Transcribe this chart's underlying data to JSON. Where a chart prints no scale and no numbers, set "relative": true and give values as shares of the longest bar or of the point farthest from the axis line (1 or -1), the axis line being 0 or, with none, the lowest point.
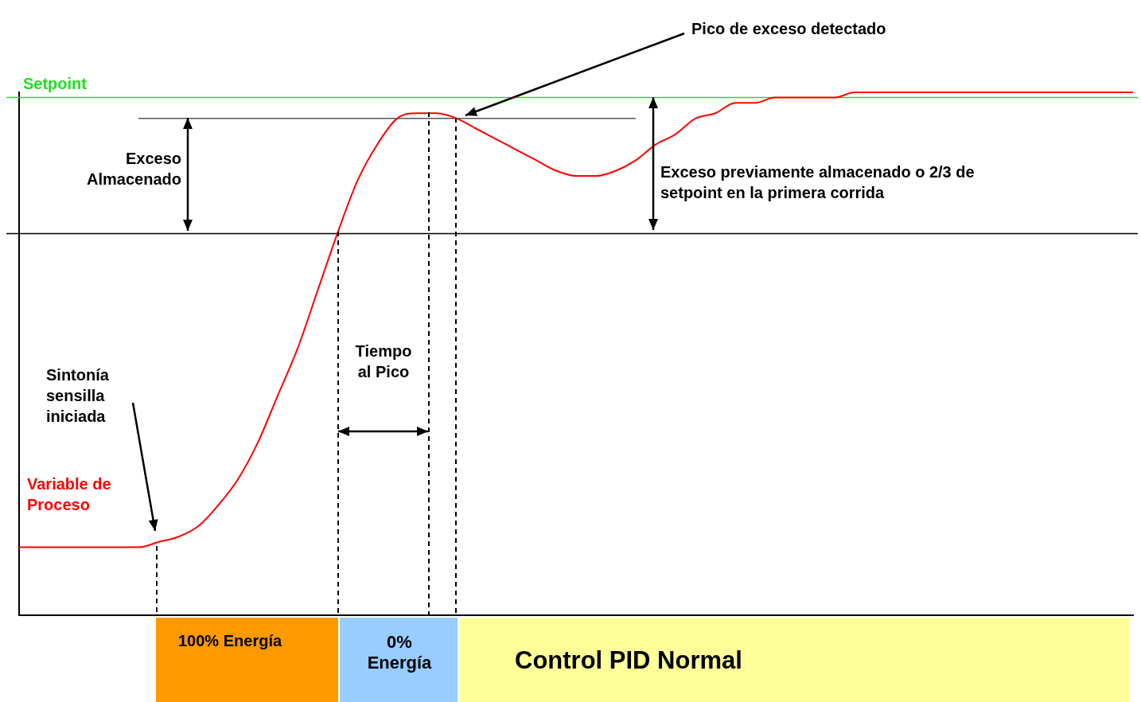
{
  "chart_data": {
    "type": "line",
    "relative": true,
    "categories": [
      null,
      null,
      null,
      null,
      null,
      null,
      null,
      null,
      null,
      null,
      null,
      null,
      null,
      null,
      null,
      null,
      null,
      null,
      null,
      null,
      null,
      null,
      null,
      null,
      null,
      null,
      null,
      null,
      null,
      null,
      null,
      null,
      null,
      null,
      null,
      null,
      null,
      null,
      null,
      null,
      null,
      null,
      null,
      null,
      null,
      null,
      null,
      null,
      null,
      null,
      null,
      null,
      null,
      null,
      null,
      null,
      null
    ],
    "series": [
      {
        "name": "Variable de Proceso",
        "color": "#ff0000",
        "values": [
          0.13,
          0.13,
          0.13,
          0.13,
          0.13,
          0.13,
          0.13,
          0.14,
          0.15,
          0.17,
          0.21,
          0.26,
          0.33,
          0.42,
          0.51,
          0.62,
          0.73,
          0.83,
          0.9,
          0.95,
          0.96,
          0.96,
          0.95,
          0.93,
          0.91,
          0.89,
          0.87,
          0.85,
          0.84,
          0.84,
          0.85,
          0.87,
          0.9,
          0.92,
          0.95,
          0.96,
          0.98,
          0.98,
          0.99,
          0.99,
          0.99,
          0.99,
          1,
          1,
          1,
          1,
          1,
          1,
          1,
          1,
          1,
          1,
          1,
          1,
          1,
          1,
          1
        ]
      },
      {
        "color": "#000000",
        "values": [
          null,
          null,
          null,
          null,
          null,
          null,
          0.95,
          0.95,
          0.95,
          0.95,
          0.95,
          0.95,
          0.95,
          0.95,
          0.95,
          0.95,
          0.95,
          0.95,
          0.95,
          0.95,
          0.95,
          0.95,
          0.95,
          0.95,
          0.95,
          0.95,
          0.95,
          0.95,
          0.95,
          0.95,
          0.95,
          0.95,
          null,
          null,
          null,
          null,
          null,
          null,
          null,
          null,
          null,
          null,
          null,
          null,
          null,
          null,
          null,
          null,
          null,
          null,
          null,
          null,
          null,
          null,
          null,
          null,
          null
        ]
      }
    ],
    "ref_lines": [
      {
        "axis": "y",
        "value": 0.99,
        "label": "Setpoint",
        "color": "#22dd22"
      },
      {
        "axis": "y",
        "value": 0.73,
        "color": "#000000"
      }
    ],
    "annotations": [
      "Pico de exceso detectado",
      "Exceso Almacenado",
      "Exceso previamente almacenado o 2/3 de setpoint en la primera corrida",
      "Tiempo al Pico",
      "Sintonía sensilla iniciada",
      "100% Energía",
      "0% Energía",
      "Control PID Normal"
    ],
    "grid": false,
    "legend": false
  }
}
